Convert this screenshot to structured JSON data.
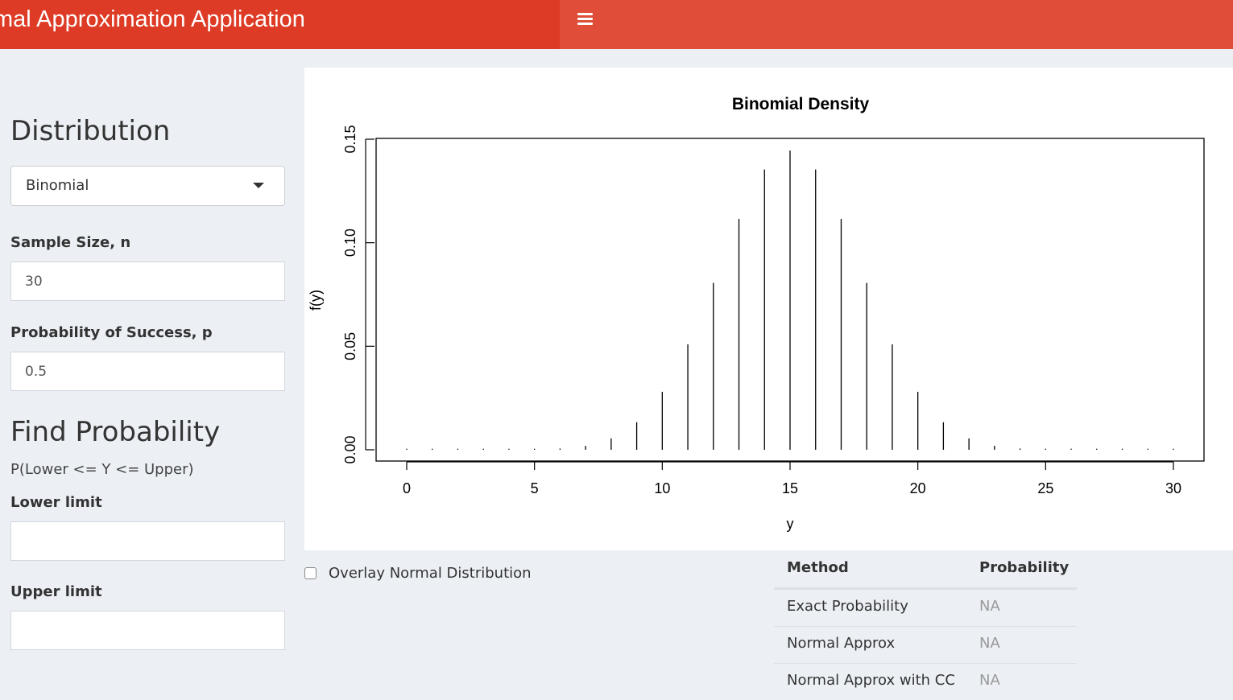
{
  "header": {
    "title": "mal Approximation Application",
    "menu_icon": "hamburger-menu-icon",
    "logo_color": "#dd3b25",
    "nav_color": "#e04e39"
  },
  "sidebar": {
    "distribution_heading": "Distribution",
    "distribution_select": {
      "value": "Binomial"
    },
    "sample_size": {
      "label": "Sample Size, n",
      "value": "30"
    },
    "probability": {
      "label": "Probability of Success, p",
      "value": "0.5"
    },
    "find_heading": "Find Probability",
    "expression": "P(Lower <= Y <= Upper)",
    "lower": {
      "label": "Lower limit",
      "value": ""
    },
    "upper": {
      "label": "Upper limit",
      "value": ""
    }
  },
  "overlay": {
    "label": "Overlay Normal Distribution",
    "checked": false
  },
  "results_table": {
    "headers": [
      "Method",
      "Probability"
    ],
    "rows": [
      [
        "Exact Probability",
        "NA"
      ],
      [
        "Normal Approx",
        "NA"
      ],
      [
        "Normal Approx with CC",
        "NA"
      ]
    ]
  },
  "chart_data": {
    "type": "bar",
    "title": "Binomial  Density",
    "xlabel": "y",
    "ylabel": "f(y)",
    "xlim": [
      0,
      30
    ],
    "ylim": [
      0,
      0.15
    ],
    "xticks": [
      "0",
      "5",
      "10",
      "15",
      "20",
      "25",
      "30"
    ],
    "yticks": [
      "0.00",
      "0.05",
      "0.10",
      "0.15"
    ],
    "grid": false,
    "x": [
      0,
      1,
      2,
      3,
      4,
      5,
      6,
      7,
      8,
      9,
      10,
      11,
      12,
      13,
      14,
      15,
      16,
      17,
      18,
      19,
      20,
      21,
      22,
      23,
      24,
      25,
      26,
      27,
      28,
      29,
      30
    ],
    "values": [
      0,
      0,
      0,
      0,
      0.0,
      0.0001,
      0.0006,
      0.0019,
      0.0055,
      0.0133,
      0.028,
      0.0509,
      0.0806,
      0.1115,
      0.1354,
      0.1445,
      0.1354,
      0.1115,
      0.0806,
      0.0509,
      0.028,
      0.0133,
      0.0055,
      0.0019,
      0.0006,
      0.0001,
      0.0,
      0,
      0,
      0,
      0
    ]
  }
}
